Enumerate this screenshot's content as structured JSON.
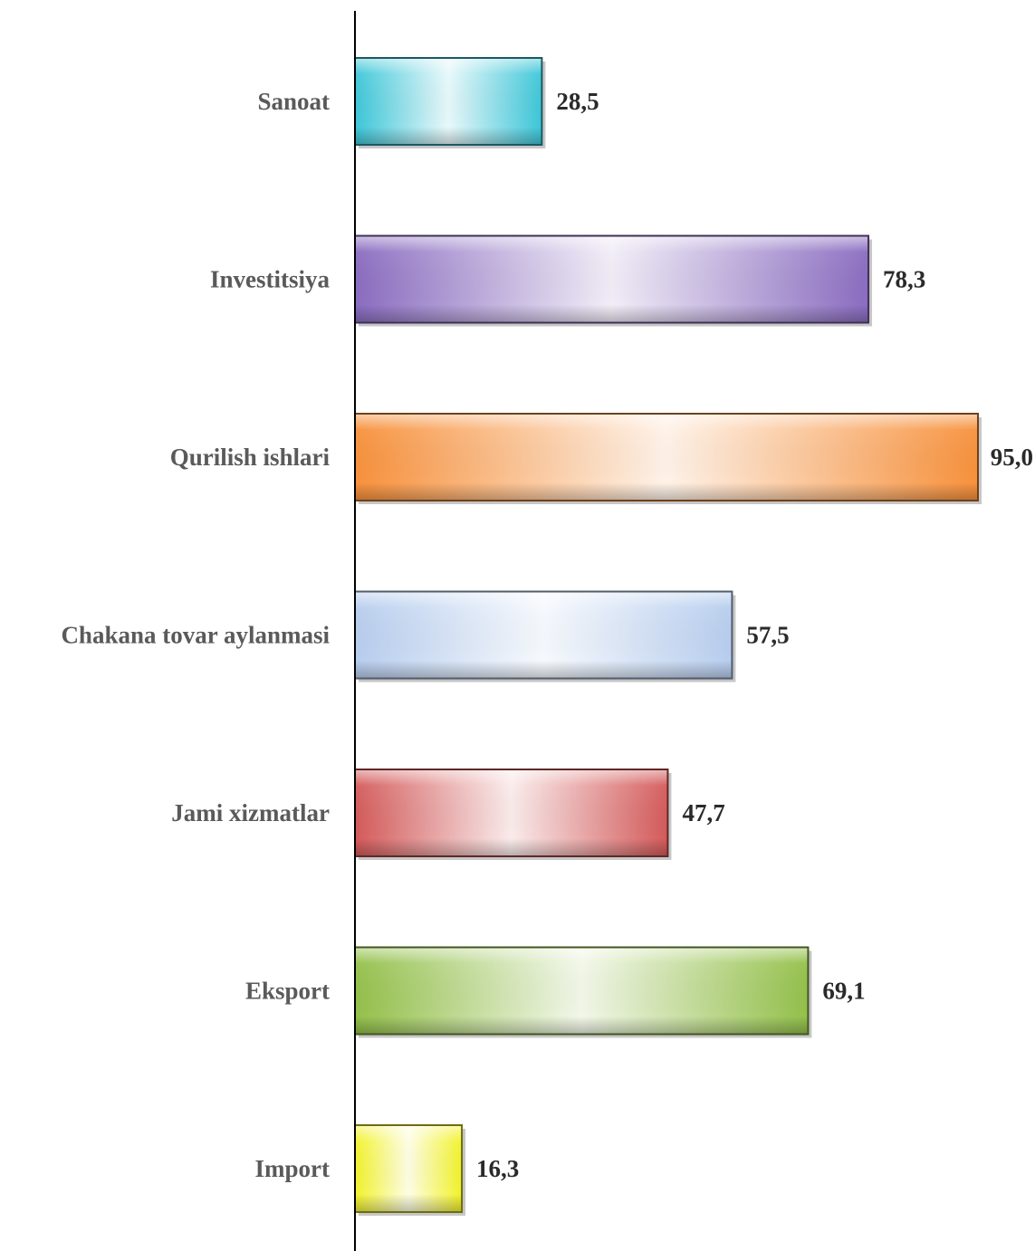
{
  "chart_data": {
    "type": "bar",
    "orientation": "horizontal",
    "categories": [
      "Sanoat",
      "Investitsiya",
      "Qurilish ishlari",
      "Chakana tovar aylanmasi",
      "Jami xizmatlar",
      "Eksport",
      "Import"
    ],
    "values": [
      28.5,
      78.3,
      95.0,
      57.5,
      47.7,
      69.1,
      16.3
    ],
    "value_labels": [
      "28,5",
      "78,3",
      "95,0",
      "57,5",
      "47,7",
      "69,1",
      "16,3"
    ],
    "colors": [
      "#3cc6d8",
      "#8a6cc0",
      "#f7913c",
      "#b7cdee",
      "#d45a5a",
      "#93c04a",
      "#f2f22a"
    ],
    "title": "",
    "xlabel": "",
    "ylabel": "",
    "xlim": [
      0,
      95
    ],
    "grid": false,
    "legend": "none"
  }
}
